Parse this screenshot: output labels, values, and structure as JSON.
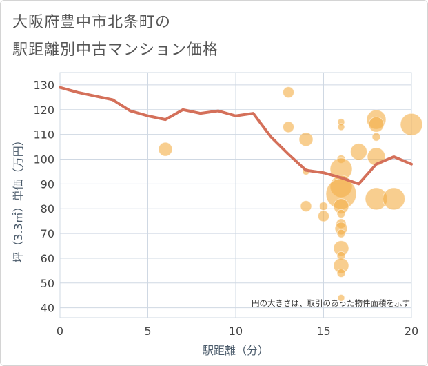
{
  "title_line1": "大阪府豊中市北条町の",
  "title_line2": "駅距離別中古マンション価格",
  "chart_data": {
    "type": "scatter",
    "title": "大阪府豊中市北条町の 駅距離別中古マンション価格",
    "xlabel": "駅距離（分）",
    "ylabel": "坪（3.3㎡）単価（万円）",
    "xlim": [
      0,
      20
    ],
    "ylim": [
      36,
      135
    ],
    "xticks": [
      0,
      5,
      10,
      15,
      20
    ],
    "yticks": [
      40,
      50,
      60,
      70,
      80,
      90,
      100,
      110,
      120,
      130
    ],
    "grid": true,
    "annotation": "円の大きさは、取引のあった物件面積を示す",
    "colors": {
      "line": "#d4705a",
      "bubble": "#f3b04a",
      "grid": "#cfd8e3",
      "axis_text": "#444444"
    },
    "series": [
      {
        "name": "average",
        "kind": "line",
        "x": [
          0,
          1,
          2,
          3,
          4,
          5,
          6,
          7,
          8,
          9,
          10,
          11,
          12,
          13,
          14,
          15,
          16,
          17,
          18,
          19,
          20
        ],
        "y": [
          129,
          127,
          125.5,
          124,
          119.5,
          117.5,
          116,
          120,
          118.5,
          119.5,
          117.5,
          118.5,
          109,
          102,
          95.5,
          94.5,
          92.5,
          90,
          98,
          101,
          98
        ]
      },
      {
        "name": "transactions",
        "kind": "bubble",
        "points": [
          {
            "x": 6,
            "y": 104,
            "s": 10
          },
          {
            "x": 13,
            "y": 127,
            "s": 8
          },
          {
            "x": 13,
            "y": 113,
            "s": 8
          },
          {
            "x": 14,
            "y": 108,
            "s": 10
          },
          {
            "x": 14,
            "y": 95,
            "s": 5
          },
          {
            "x": 14,
            "y": 81,
            "s": 8
          },
          {
            "x": 15,
            "y": 81,
            "s": 6
          },
          {
            "x": 15,
            "y": 77,
            "s": 8
          },
          {
            "x": 16,
            "y": 115,
            "s": 5
          },
          {
            "x": 16,
            "y": 113,
            "s": 5
          },
          {
            "x": 16,
            "y": 100,
            "s": 6
          },
          {
            "x": 16,
            "y": 96,
            "s": 16
          },
          {
            "x": 16,
            "y": 89,
            "s": 16
          },
          {
            "x": 16,
            "y": 86,
            "s": 22
          },
          {
            "x": 16,
            "y": 81,
            "s": 11
          },
          {
            "x": 16,
            "y": 78,
            "s": 6
          },
          {
            "x": 16,
            "y": 74,
            "s": 7
          },
          {
            "x": 16,
            "y": 72,
            "s": 9
          },
          {
            "x": 16,
            "y": 70,
            "s": 6
          },
          {
            "x": 16,
            "y": 64,
            "s": 11
          },
          {
            "x": 16,
            "y": 61,
            "s": 6
          },
          {
            "x": 16,
            "y": 57,
            "s": 11
          },
          {
            "x": 16,
            "y": 54,
            "s": 6
          },
          {
            "x": 16,
            "y": 44,
            "s": 5
          },
          {
            "x": 17,
            "y": 103,
            "s": 12
          },
          {
            "x": 18,
            "y": 116,
            "s": 14
          },
          {
            "x": 18,
            "y": 114,
            "s": 11
          },
          {
            "x": 18,
            "y": 109,
            "s": 6
          },
          {
            "x": 18,
            "y": 101,
            "s": 13
          },
          {
            "x": 18,
            "y": 84,
            "s": 16
          },
          {
            "x": 19,
            "y": 84,
            "s": 16
          },
          {
            "x": 20,
            "y": 114,
            "s": 16
          }
        ]
      }
    ]
  }
}
